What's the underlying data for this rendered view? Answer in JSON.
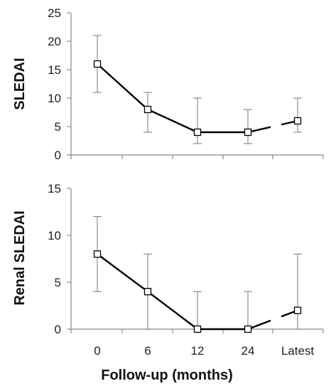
{
  "chart_data": [
    {
      "type": "line",
      "ylabel": "SLEDAI",
      "ylim": [
        0,
        25
      ],
      "yticks": [
        0,
        5,
        10,
        15,
        20,
        25
      ],
      "categories": [
        "0",
        "6",
        "12",
        "24",
        "Latest"
      ],
      "series": [
        {
          "values": [
            16,
            8,
            4,
            4,
            6
          ],
          "error_low": [
            11,
            4,
            2,
            2,
            4
          ],
          "error_high": [
            21,
            11,
            10,
            8,
            10
          ]
        }
      ],
      "broken_before_last": true,
      "grid": false
    },
    {
      "type": "line",
      "ylabel": "Renal SLEDAI",
      "ylim": [
        0,
        15
      ],
      "yticks": [
        0,
        5,
        10,
        15
      ],
      "categories": [
        "0",
        "6",
        "12",
        "24",
        "Latest"
      ],
      "series": [
        {
          "values": [
            8,
            4,
            0,
            0,
            2
          ],
          "error_low": [
            4,
            0,
            0,
            0,
            0
          ],
          "error_high": [
            12,
            8,
            4,
            4,
            8
          ]
        }
      ],
      "broken_before_last": true,
      "grid": false
    }
  ],
  "xlabel": "Follow-up (months)",
  "colors": {
    "line": "#000000",
    "errorbar": "#8c8c8c",
    "axis": "#8c8c8c",
    "marker_fill": "#ffffff"
  }
}
